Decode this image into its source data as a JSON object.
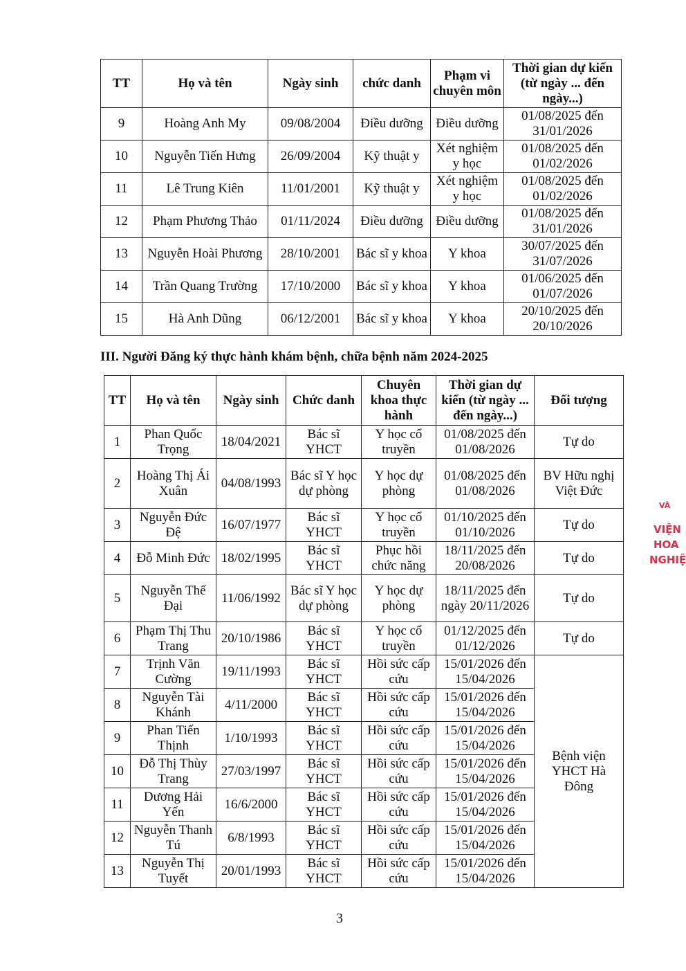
{
  "table1": {
    "headers": [
      "TT",
      "Họ và tên",
      "Ngày sinh",
      "chức danh",
      "Phạm vi chuyên môn",
      "Thời gian dự kiến (từ ngày ... đến ngày...)"
    ],
    "rows": [
      [
        "9",
        "Hoàng Anh My",
        "09/08/2004",
        "Điều dưỡng",
        "Điều dưỡng",
        "01/08/2025 đến 31/01/2026"
      ],
      [
        "10",
        "Nguyễn Tiến Hưng",
        "26/09/2004",
        "Kỹ thuật y",
        "Xét nghiệm y học",
        "01/08/2025 đến 01/02/2026"
      ],
      [
        "11",
        "Lê Trung Kiên",
        "11/01/2001",
        "Kỹ thuật y",
        "Xét nghiệm y học",
        "01/08/2025 đến 01/02/2026"
      ],
      [
        "12",
        "Phạm Phương Thảo",
        "01/11/2024",
        "Điều dưỡng",
        "Điều dưỡng",
        "01/08/2025 đến 31/01/2026"
      ],
      [
        "13",
        "Nguyễn Hoài Phương",
        "28/10/2001",
        "Bác sĩ y khoa",
        "Y khoa",
        "30/07/2025 đến 31/07/2026"
      ],
      [
        "14",
        "Trần Quang Trường",
        "17/10/2000",
        "Bác sĩ y khoa",
        "Y khoa",
        "01/06/2025 đến 01/07/2026"
      ],
      [
        "15",
        "Hà Anh Dũng",
        "06/12/2001",
        "Bác sĩ y khoa",
        "Y khoa",
        "20/10/2025 đến 20/10/2026"
      ]
    ]
  },
  "section_heading": "III. Người Đăng ký thực hành khám bệnh, chữa bệnh năm 2024-2025",
  "table2": {
    "headers": [
      "TT",
      "Họ và tên",
      "Ngày sinh",
      "Chức danh",
      "Chuyên khoa thực hành",
      "Thời gian dự kiến (từ ngày ... đến ngày...)",
      "Đối tượng"
    ],
    "rows": [
      [
        "1",
        "Phan Quốc Trọng",
        "18/04/2021",
        "Bác sĩ YHCT",
        "Y học cổ truyền",
        "01/08/2025 đến 01/08/2026",
        "Tự do"
      ],
      [
        "2",
        "Hoàng Thị Ái Xuân",
        "04/08/1993",
        "Bác sĩ Y học dự phòng",
        "Y học dự phòng",
        "01/08/2025 đến 01/08/2026",
        "BV Hữu nghị Việt Đức"
      ],
      [
        "3",
        "Nguyễn Đức Đệ",
        "16/07/1977",
        "Bác sĩ YHCT",
        "Y học cổ truyền",
        "01/10/2025 đến 01/10/2026",
        "Tự do"
      ],
      [
        "4",
        "Đỗ Minh Đức",
        "18/02/1995",
        "Bác sĩ YHCT",
        "Phục hồi chức năng",
        "18/11/2025 đến 20/08/2026",
        "Tự do"
      ],
      [
        "5",
        "Nguyễn Thế Đại",
        "11/06/1992",
        "Bác sĩ Y học dự phòng",
        "Y học dự phòng",
        "18/11/2025 đến ngày 20/11/2026",
        "Tự do"
      ],
      [
        "6",
        "Phạm Thị Thu Trang",
        "20/10/1986",
        "Bác sĩ YHCT",
        "Y học cổ truyền",
        "01/12/2025 đến 01/12/2026",
        "Tự do"
      ],
      [
        "7",
        "Trịnh Văn Cường",
        "19/11/1993",
        "Bác sĩ YHCT",
        "Hồi sức cấp cứu",
        "15/01/2026 đến 15/04/2026"
      ],
      [
        "8",
        "Nguyễn Tài Khánh",
        "4/11/2000",
        "Bác sĩ YHCT",
        "Hồi sức cấp cứu",
        "15/01/2026 đến 15/04/2026"
      ],
      [
        "9",
        "Phan Tiến Thịnh",
        "1/10/1993",
        "Bác sĩ YHCT",
        "Hồi sức cấp cứu",
        "15/01/2026 đến 15/04/2026"
      ],
      [
        "10",
        "Đỗ Thị Thùy Trang",
        "27/03/1997",
        "Bác sĩ YHCT",
        "Hồi sức cấp cứu",
        "15/01/2026 đến 15/04/2026"
      ],
      [
        "11",
        "Dương Hải Yến",
        "16/6/2000",
        "Bác sĩ YHCT",
        "Hồi sức cấp cứu",
        "15/01/2026 đến 15/04/2026"
      ],
      [
        "12",
        "Nguyễn Thanh Tú",
        "6/8/1993",
        "Bác sĩ YHCT",
        "Hồi sức cấp cứu",
        "15/01/2026 đến 15/04/2026"
      ],
      [
        "13",
        "Nguyễn Thị Tuyết",
        "20/01/1993",
        "Bác sĩ YHCT",
        "Hồi sức cấp cứu",
        "15/01/2026 đến 15/04/2026"
      ]
    ],
    "shared_object": "Bệnh viện YHCT Hà Đông"
  },
  "page_number": "3",
  "stamp_fragments": [
    "VÀ",
    "VIỆN",
    "HOA",
    "NGHIỆ"
  ]
}
